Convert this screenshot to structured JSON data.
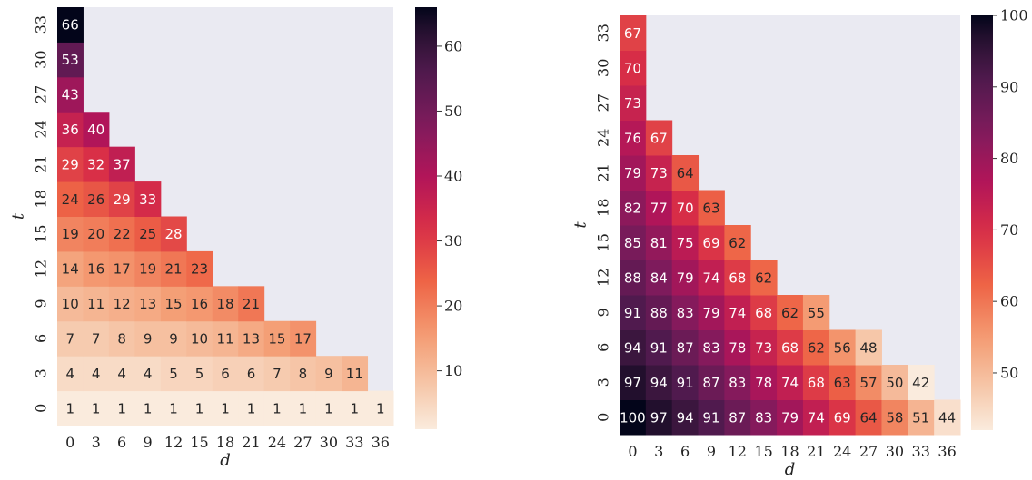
{
  "chart_data": [
    {
      "type": "heatmap",
      "xlabel": "d",
      "ylabel": "t",
      "x": [
        0,
        3,
        6,
        9,
        12,
        15,
        18,
        21,
        24,
        27,
        30,
        33,
        36
      ],
      "y": [
        0,
        3,
        6,
        9,
        12,
        15,
        18,
        21,
        24,
        27,
        30,
        33
      ],
      "values": [
        [
          1,
          1,
          1,
          1,
          1,
          1,
          1,
          1,
          1,
          1,
          1,
          1,
          1
        ],
        [
          4,
          4,
          4,
          4,
          5,
          5,
          6,
          6,
          7,
          8,
          9,
          11,
          null
        ],
        [
          7,
          7,
          8,
          9,
          9,
          10,
          11,
          13,
          15,
          17,
          null,
          null,
          null
        ],
        [
          10,
          11,
          12,
          13,
          15,
          16,
          18,
          21,
          null,
          null,
          null,
          null,
          null
        ],
        [
          14,
          16,
          17,
          19,
          21,
          23,
          null,
          null,
          null,
          null,
          null,
          null,
          null
        ],
        [
          19,
          20,
          22,
          25,
          28,
          null,
          null,
          null,
          null,
          null,
          null,
          null,
          null
        ],
        [
          24,
          26,
          29,
          33,
          null,
          null,
          null,
          null,
          null,
          null,
          null,
          null,
          null
        ],
        [
          29,
          32,
          37,
          null,
          null,
          null,
          null,
          null,
          null,
          null,
          null,
          null,
          null
        ],
        [
          36,
          40,
          null,
          null,
          null,
          null,
          null,
          null,
          null,
          null,
          null,
          null,
          null
        ],
        [
          43,
          null,
          null,
          null,
          null,
          null,
          null,
          null,
          null,
          null,
          null,
          null,
          null
        ],
        [
          53,
          null,
          null,
          null,
          null,
          null,
          null,
          null,
          null,
          null,
          null,
          null,
          null
        ],
        [
          66,
          null,
          null,
          null,
          null,
          null,
          null,
          null,
          null,
          null,
          null,
          null,
          null
        ]
      ],
      "vmin": 1,
      "vmax": 66,
      "colorbar_ticks": [
        10,
        20,
        30,
        40,
        50,
        60
      ],
      "colormap": "rocket_r",
      "missing_color": "#eaeaf2",
      "annotations": true
    },
    {
      "type": "heatmap",
      "xlabel": "d",
      "ylabel": "t",
      "x": [
        0,
        3,
        6,
        9,
        12,
        15,
        18,
        21,
        24,
        27,
        30,
        33,
        36
      ],
      "y": [
        0,
        3,
        6,
        9,
        12,
        15,
        18,
        21,
        24,
        27,
        30,
        33
      ],
      "values": [
        [
          100,
          97,
          94,
          91,
          87,
          83,
          79,
          74,
          69,
          64,
          58,
          51,
          44
        ],
        [
          97,
          94,
          91,
          87,
          83,
          78,
          74,
          68,
          63,
          57,
          50,
          42,
          null
        ],
        [
          94,
          91,
          87,
          83,
          78,
          73,
          68,
          62,
          56,
          48,
          null,
          null,
          null
        ],
        [
          91,
          88,
          83,
          79,
          74,
          68,
          62,
          55,
          null,
          null,
          null,
          null,
          null
        ],
        [
          88,
          84,
          79,
          74,
          68,
          62,
          null,
          null,
          null,
          null,
          null,
          null,
          null
        ],
        [
          85,
          81,
          75,
          69,
          62,
          null,
          null,
          null,
          null,
          null,
          null,
          null,
          null
        ],
        [
          82,
          77,
          70,
          63,
          null,
          null,
          null,
          null,
          null,
          null,
          null,
          null,
          null
        ],
        [
          79,
          73,
          64,
          null,
          null,
          null,
          null,
          null,
          null,
          null,
          null,
          null,
          null
        ],
        [
          76,
          67,
          null,
          null,
          null,
          null,
          null,
          null,
          null,
          null,
          null,
          null,
          null
        ],
        [
          73,
          null,
          null,
          null,
          null,
          null,
          null,
          null,
          null,
          null,
          null,
          null,
          null
        ],
        [
          70,
          null,
          null,
          null,
          null,
          null,
          null,
          null,
          null,
          null,
          null,
          null,
          null
        ],
        [
          67,
          null,
          null,
          null,
          null,
          null,
          null,
          null,
          null,
          null,
          null,
          null,
          null
        ]
      ],
      "vmin": 42,
      "vmax": 100,
      "colorbar_ticks": [
        50,
        60,
        70,
        80,
        90,
        100
      ],
      "colormap": "rocket_r",
      "missing_color": "#eaeaf2",
      "annotations": true
    }
  ]
}
